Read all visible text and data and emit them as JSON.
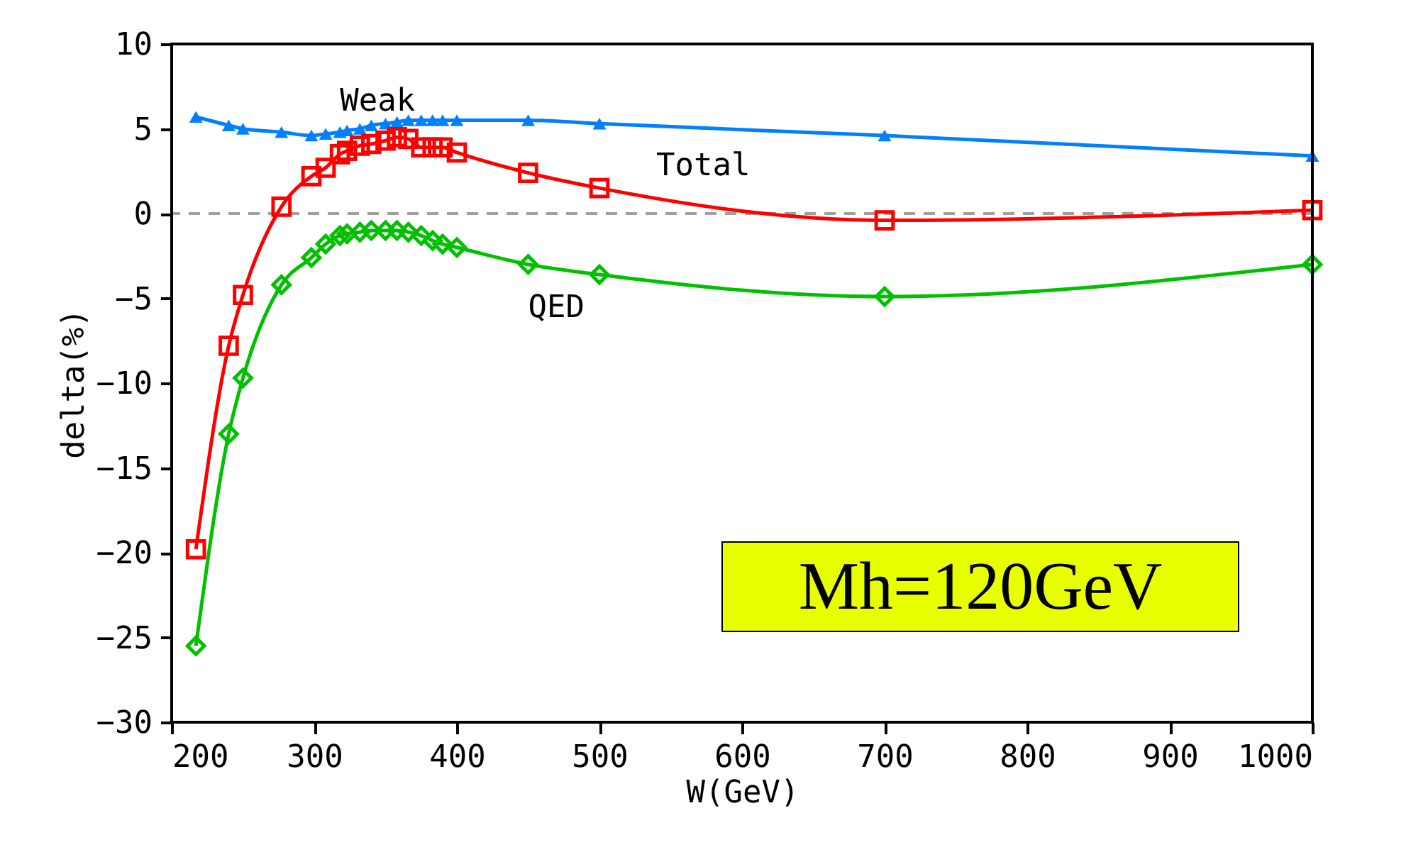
{
  "chart_data": {
    "type": "line",
    "xlabel": "W(GeV)",
    "ylabel": "delta(%)",
    "xlim": [
      200,
      1000
    ],
    "xticks": [
      200,
      300,
      400,
      500,
      600,
      700,
      800,
      900,
      1000
    ],
    "ylim": [
      -30,
      10
    ],
    "yticks": [
      -30,
      -25,
      -20,
      -15,
      -10,
      -5,
      0,
      5,
      10
    ],
    "grid": false,
    "line_style": "solid",
    "ref_lines": [
      {
        "axis": "y",
        "value": 0,
        "color": "#a0a0a0",
        "line_style": "dashed"
      }
    ],
    "annotations": [
      "Mh=120GeV"
    ],
    "series": [
      {
        "name": "Weak",
        "color": "#0080ff",
        "marker": "triangle",
        "x": [
          217,
          240,
          250,
          277,
          298,
          308,
          318,
          323,
          332,
          340,
          350,
          358,
          366,
          375,
          383,
          390,
          400,
          450,
          500,
          700,
          1000
        ],
        "values": [
          5.7,
          5.2,
          5.0,
          4.8,
          4.6,
          4.7,
          4.8,
          4.9,
          5.0,
          5.2,
          5.3,
          5.4,
          5.5,
          5.5,
          5.5,
          5.5,
          5.5,
          5.5,
          5.3,
          4.6,
          3.4
        ]
      },
      {
        "name": "Total",
        "color": "#ff0000",
        "marker": "square",
        "x": [
          217,
          240,
          250,
          277,
          298,
          308,
          318,
          323,
          332,
          340,
          350,
          358,
          366,
          375,
          383,
          390,
          400,
          450,
          500,
          700,
          1000
        ],
        "values": [
          -19.8,
          -7.8,
          -4.8,
          0.4,
          2.2,
          2.7,
          3.5,
          3.7,
          4.0,
          4.1,
          4.3,
          4.5,
          4.4,
          3.9,
          3.9,
          3.9,
          3.6,
          2.4,
          1.5,
          -0.4,
          0.2
        ]
      },
      {
        "name": "QED",
        "color": "#00c000",
        "marker": "diamond",
        "x": [
          217,
          240,
          250,
          277,
          298,
          308,
          318,
          323,
          332,
          340,
          350,
          358,
          366,
          375,
          383,
          390,
          400,
          450,
          500,
          700,
          1000
        ],
        "values": [
          -25.5,
          -13.0,
          -9.7,
          -4.2,
          -2.6,
          -1.8,
          -1.3,
          -1.2,
          -1.1,
          -1.0,
          -1.0,
          -1.0,
          -1.1,
          -1.3,
          -1.6,
          -1.8,
          -2.0,
          -3.0,
          -3.6,
          -4.9,
          -3.0
        ]
      }
    ]
  }
}
